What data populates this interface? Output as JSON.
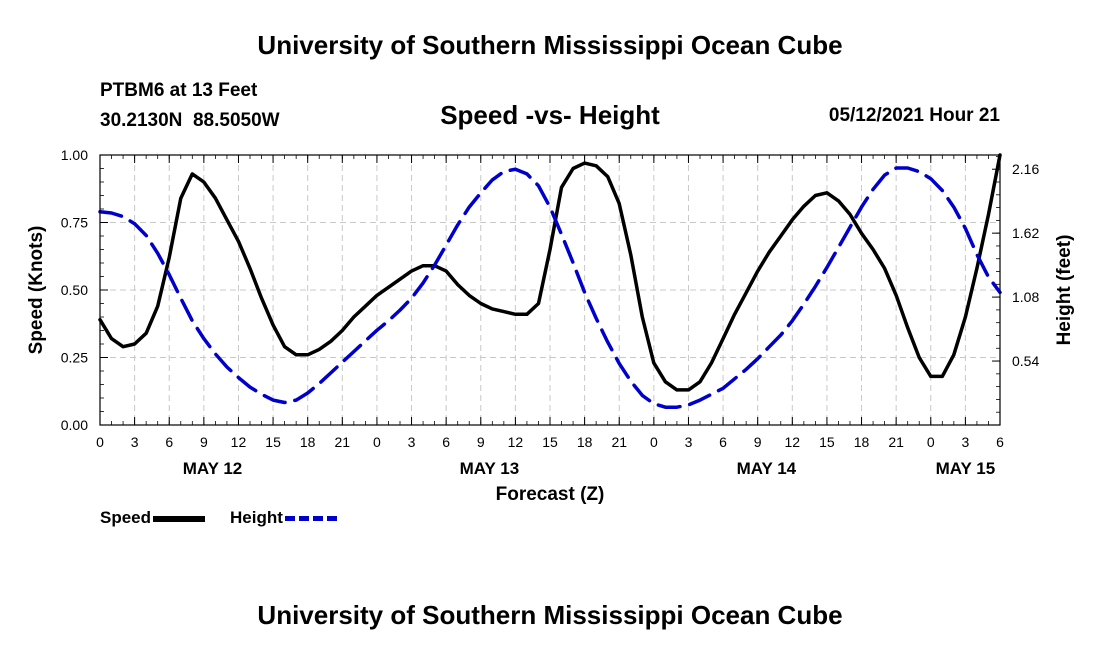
{
  "header": {
    "title": "University of Southern Mississippi Ocean Cube",
    "station": "PTBM6 at 13 Feet",
    "coordinates": "30.2130N  88.5050W",
    "subtitle": "Speed -vs- Height",
    "datetime": "05/12/2021 Hour 21"
  },
  "footer": {
    "title": "University of Southern Mississippi Ocean Cube"
  },
  "legend": {
    "speed_label": "Speed",
    "height_label": "Height"
  },
  "chart_data": {
    "type": "line",
    "title": "Speed -vs- Height",
    "xlabel": "Forecast (Z)",
    "ylabel": "Speed (Knots)",
    "y2label": "Height (feet)",
    "xlim": [
      0,
      78
    ],
    "ylim": [
      0,
      1.0
    ],
    "y2lim": [
      0.0,
      2.28
    ],
    "grid": true,
    "legend_position": "bottom-left",
    "x_tick_values": [
      0,
      3,
      6,
      9,
      12,
      15,
      18,
      21,
      24,
      27,
      30,
      33,
      36,
      39,
      42,
      45,
      48,
      51,
      54,
      57,
      60,
      63,
      66,
      69,
      72,
      75,
      78
    ],
    "x_tick_labels": [
      "0",
      "3",
      "6",
      "9",
      "12",
      "15",
      "18",
      "21",
      "0",
      "3",
      "6",
      "9",
      "12",
      "15",
      "18",
      "21",
      "0",
      "3",
      "6",
      "9",
      "12",
      "15",
      "18",
      "21",
      "0",
      "3",
      "6"
    ],
    "date_labels": [
      {
        "x": 9.75,
        "label": "MAY 12"
      },
      {
        "x": 33.75,
        "label": "MAY 13"
      },
      {
        "x": 57.75,
        "label": "MAY 14"
      },
      {
        "x": 75.0,
        "label": "MAY 15"
      }
    ],
    "y_ticks": [
      "0.00",
      "0.25",
      "0.50",
      "0.75",
      "1.00"
    ],
    "y_tick_values": [
      0,
      0.25,
      0.5,
      0.75,
      1.0
    ],
    "y2_ticks": [
      "0.54",
      "1.08",
      "1.62",
      "2.16"
    ],
    "y2_tick_values": [
      0.54,
      1.08,
      1.62,
      2.16
    ],
    "series": [
      {
        "name": "Speed",
        "axis": "left",
        "color": "#000000",
        "style": "solid",
        "x": [
          0,
          1,
          2,
          3,
          4,
          5,
          6,
          7,
          8,
          9,
          10,
          11,
          12,
          13,
          14,
          15,
          16,
          17,
          18,
          19,
          20,
          21,
          22,
          23,
          24,
          25,
          26,
          27,
          28,
          29,
          30,
          31,
          32,
          33,
          34,
          35,
          36,
          37,
          38,
          39,
          40,
          41,
          42,
          43,
          44,
          45,
          46,
          47,
          48,
          49,
          50,
          51,
          52,
          53,
          54,
          55,
          56,
          57,
          58,
          59,
          60,
          61,
          62,
          63,
          64,
          65,
          66,
          67,
          68,
          69,
          70,
          71,
          72,
          73,
          74,
          75,
          76,
          77,
          78
        ],
        "values": [
          0.39,
          0.32,
          0.29,
          0.3,
          0.34,
          0.44,
          0.62,
          0.84,
          0.93,
          0.9,
          0.84,
          0.76,
          0.68,
          0.58,
          0.47,
          0.37,
          0.29,
          0.26,
          0.26,
          0.28,
          0.31,
          0.35,
          0.4,
          0.44,
          0.48,
          0.51,
          0.54,
          0.57,
          0.59,
          0.59,
          0.57,
          0.52,
          0.48,
          0.45,
          0.43,
          0.42,
          0.41,
          0.41,
          0.45,
          0.65,
          0.88,
          0.95,
          0.97,
          0.96,
          0.92,
          0.82,
          0.63,
          0.4,
          0.23,
          0.16,
          0.13,
          0.13,
          0.16,
          0.23,
          0.32,
          0.41,
          0.49,
          0.57,
          0.64,
          0.7,
          0.76,
          0.81,
          0.85,
          0.86,
          0.83,
          0.78,
          0.71,
          0.65,
          0.58,
          0.48,
          0.36,
          0.25,
          0.18,
          0.18,
          0.26,
          0.4,
          0.58,
          0.78,
          1.0
        ]
      },
      {
        "name": "Height",
        "axis": "right",
        "color": "#0000cc",
        "style": "dashed",
        "x": [
          0,
          1,
          2,
          3,
          4,
          5,
          6,
          7,
          8,
          9,
          10,
          11,
          12,
          13,
          14,
          15,
          16,
          17,
          18,
          19,
          20,
          21,
          22,
          23,
          24,
          25,
          26,
          27,
          28,
          29,
          30,
          31,
          32,
          33,
          34,
          35,
          36,
          37,
          38,
          39,
          40,
          41,
          42,
          43,
          44,
          45,
          46,
          47,
          48,
          49,
          50,
          51,
          52,
          53,
          54,
          55,
          56,
          57,
          58,
          59,
          60,
          61,
          62,
          63,
          64,
          65,
          66,
          67,
          68,
          69,
          70,
          71,
          72,
          73,
          74,
          75,
          76,
          77,
          78
        ],
        "values": [
          1.8,
          1.79,
          1.76,
          1.7,
          1.6,
          1.45,
          1.27,
          1.07,
          0.88,
          0.73,
          0.6,
          0.49,
          0.4,
          0.32,
          0.26,
          0.21,
          0.19,
          0.21,
          0.27,
          0.35,
          0.44,
          0.53,
          0.62,
          0.71,
          0.8,
          0.88,
          0.97,
          1.07,
          1.2,
          1.35,
          1.52,
          1.69,
          1.84,
          1.96,
          2.07,
          2.14,
          2.16,
          2.12,
          2.02,
          1.84,
          1.61,
          1.37,
          1.12,
          0.9,
          0.7,
          0.52,
          0.37,
          0.25,
          0.18,
          0.15,
          0.15,
          0.17,
          0.21,
          0.26,
          0.31,
          0.39,
          0.47,
          0.56,
          0.66,
          0.76,
          0.88,
          1.02,
          1.17,
          1.33,
          1.5,
          1.67,
          1.84,
          1.99,
          2.11,
          2.17,
          2.17,
          2.14,
          2.08,
          1.98,
          1.84,
          1.66,
          1.44,
          1.25,
          1.12
        ]
      }
    ]
  }
}
